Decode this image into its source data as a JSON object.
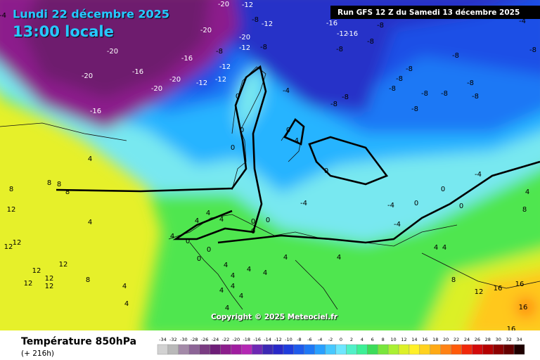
{
  "header": {
    "date": "Lundi 22 décembre 2025",
    "time": "13:00 locale",
    "run": "Run GFS 12 Z du Samedi 13 décembre 2025"
  },
  "copyright": "Copyright © 2025 Meteociel.fr",
  "legend": {
    "title": "Température 850hPa",
    "subtitle": "(+ 216h)",
    "values": [
      -34,
      -32,
      -30,
      -28,
      -26,
      -24,
      -22,
      -20,
      -18,
      -16,
      -14,
      -12,
      -10,
      -8,
      -6,
      -4,
      -2,
      0,
      2,
      4,
      6,
      8,
      10,
      12,
      14,
      16,
      18,
      20,
      22,
      24,
      26,
      28,
      30,
      32,
      34
    ],
    "colors": [
      "#d2d2d2",
      "#b9b9b9",
      "#a38aa8",
      "#8c6496",
      "#7a3c82",
      "#6e1e78",
      "#8c1e8c",
      "#a01ea0",
      "#b428b4",
      "#6e28b4",
      "#3c28b4",
      "#2828c8",
      "#1e3cdc",
      "#1e5aeb",
      "#1e78f5",
      "#28a0ff",
      "#46c8ff",
      "#6ee6ff",
      "#50f0c8",
      "#3cf096",
      "#3cdc5a",
      "#78e63c",
      "#aaf032",
      "#dcf028",
      "#fff028",
      "#ffd21e",
      "#ffaa14",
      "#ff8214",
      "#ff5a0a",
      "#f0280a",
      "#d20a0a",
      "#b40000",
      "#8c0000",
      "#640000",
      "#1e0000"
    ]
  },
  "contour_labels": [
    -4,
    -20,
    -20,
    -16,
    -20,
    -20,
    -16,
    -16,
    -20,
    -20,
    -12,
    -8,
    -12,
    -20,
    -8,
    -12,
    -8,
    -12,
    -12,
    -12,
    -16,
    -12,
    -16,
    -8,
    -8,
    -8,
    -8,
    -8,
    -8,
    -8,
    -8,
    -8,
    -8,
    -8,
    -8,
    -8,
    -8,
    -4,
    -8,
    -4,
    0,
    0,
    0,
    0,
    -4,
    0,
    -4,
    -4,
    -4,
    0,
    0,
    0,
    -4,
    4,
    8,
    4,
    8,
    8,
    8,
    8,
    12,
    4,
    12,
    12,
    12,
    12,
    12,
    12,
    12,
    8,
    4,
    4,
    4,
    4,
    0,
    0,
    0,
    0,
    0,
    4,
    4,
    4,
    4,
    4,
    4,
    4,
    4,
    4,
    4,
    4,
    0,
    4,
    4,
    4,
    8,
    12,
    16,
    16,
    16,
    16
  ]
}
